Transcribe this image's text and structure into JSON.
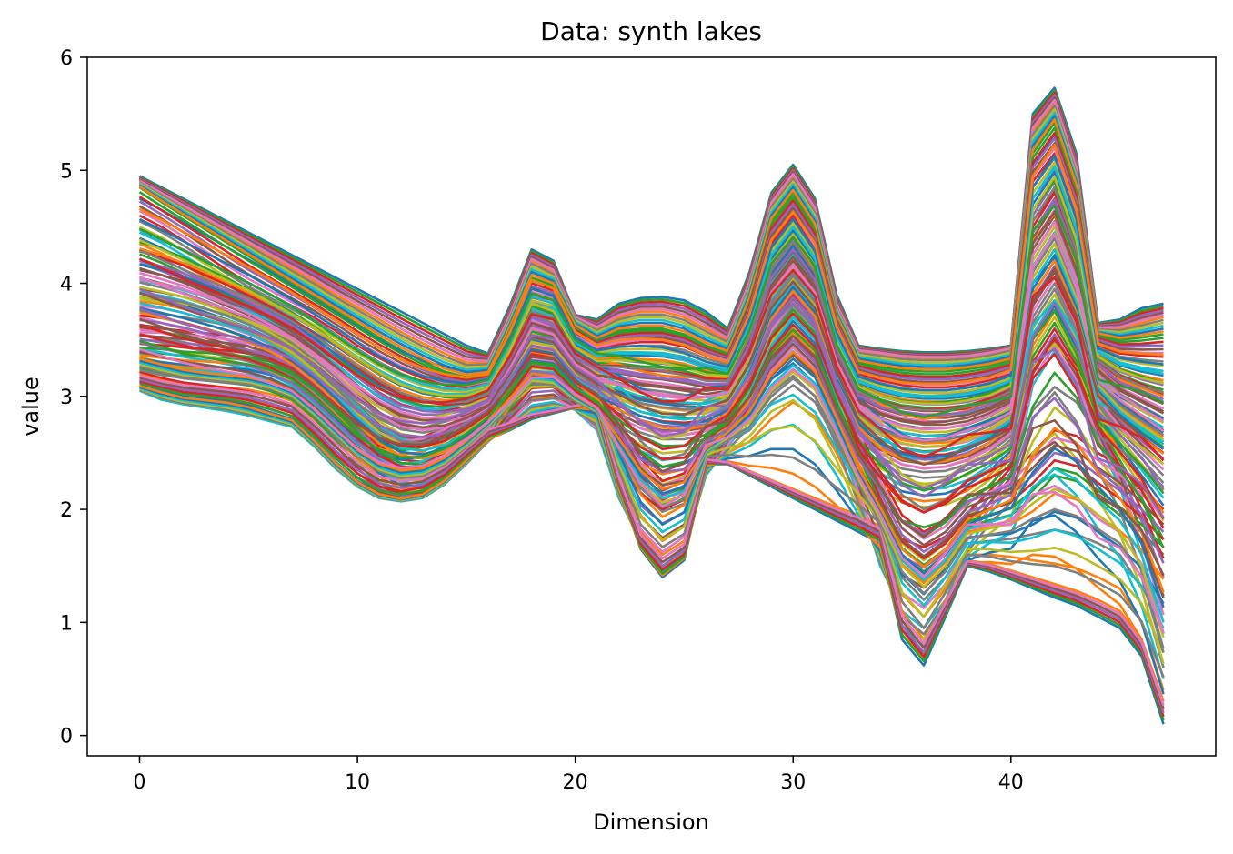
{
  "chart_data": {
    "type": "line",
    "title": "Data: synth lakes",
    "xlabel": "Dimension",
    "ylabel": "value",
    "xlim": [
      -2.4,
      49.4
    ],
    "ylim": [
      -0.18,
      6.0
    ],
    "xticks": [
      0,
      10,
      20,
      30,
      40
    ],
    "yticks": [
      0,
      1,
      2,
      3,
      4,
      5,
      6
    ],
    "grid": false,
    "legend": "none",
    "num_points": 48,
    "x": [
      0,
      1,
      2,
      3,
      4,
      5,
      6,
      7,
      8,
      9,
      10,
      11,
      12,
      13,
      14,
      15,
      16,
      17,
      18,
      19,
      20,
      21,
      22,
      23,
      24,
      25,
      26,
      27,
      28,
      29,
      30,
      31,
      32,
      33,
      34,
      35,
      36,
      37,
      38,
      39,
      40,
      41,
      42,
      43,
      44,
      45,
      46,
      47
    ],
    "color_cycle": [
      "#1f77b4",
      "#ff7f0e",
      "#2ca02c",
      "#d62728",
      "#9467bd",
      "#8c564b",
      "#e377c2",
      "#7f7f7f",
      "#bcbd22",
      "#17becf"
    ],
    "series": [
      {
        "values": [
          4.95,
          4.85,
          4.75,
          4.65,
          4.55,
          4.45,
          4.35,
          4.25,
          4.15,
          4.05,
          3.95,
          3.85,
          3.75,
          3.65,
          3.55,
          3.45,
          3.38,
          3.8,
          4.3,
          4.2,
          3.72,
          3.68,
          3.82,
          3.87,
          3.88,
          3.85,
          3.75,
          3.6,
          4.1,
          4.8,
          5.05,
          4.75,
          3.9,
          3.45,
          3.42,
          3.4,
          3.39,
          3.39,
          3.4,
          3.42,
          3.45,
          5.5,
          5.73,
          5.15,
          3.65,
          3.68,
          3.78,
          3.82
        ]
      },
      {
        "values": [
          4.9,
          4.79,
          4.68,
          4.57,
          4.46,
          4.35,
          4.24,
          4.13,
          4.02,
          3.9,
          3.79,
          3.68,
          3.57,
          3.47,
          3.38,
          3.3,
          3.3,
          3.7,
          4.2,
          4.1,
          3.7,
          3.6,
          3.7,
          3.75,
          3.75,
          3.7,
          3.6,
          3.5,
          4.0,
          4.7,
          4.95,
          4.65,
          3.8,
          3.4,
          3.38,
          3.35,
          3.34,
          3.34,
          3.35,
          3.38,
          3.42,
          5.35,
          5.6,
          5.0,
          3.6,
          3.6,
          3.65,
          3.7
        ]
      },
      {
        "values": [
          4.85,
          4.72,
          4.6,
          4.48,
          4.36,
          4.24,
          4.12,
          4.0,
          3.88,
          3.76,
          3.64,
          3.52,
          3.41,
          3.31,
          3.22,
          3.17,
          3.2,
          3.6,
          4.05,
          3.98,
          3.62,
          3.5,
          3.58,
          3.6,
          3.6,
          3.55,
          3.45,
          3.38,
          3.85,
          4.55,
          4.8,
          4.5,
          3.7,
          3.3,
          3.26,
          3.23,
          3.22,
          3.22,
          3.24,
          3.27,
          3.32,
          5.15,
          5.42,
          4.85,
          3.55,
          3.5,
          3.52,
          3.55
        ]
      },
      {
        "values": [
          4.6,
          4.5,
          4.38,
          4.25,
          4.12,
          4.0,
          3.9,
          3.8,
          3.7,
          3.58,
          3.45,
          3.34,
          3.24,
          3.16,
          3.1,
          3.08,
          3.12,
          3.5,
          3.9,
          3.85,
          3.52,
          3.42,
          3.46,
          3.48,
          3.48,
          3.44,
          3.36,
          3.3,
          3.7,
          4.35,
          4.6,
          4.3,
          3.6,
          3.2,
          3.14,
          3.1,
          3.08,
          3.08,
          3.1,
          3.14,
          3.2,
          4.9,
          5.15,
          4.6,
          3.45,
          3.38,
          3.36,
          3.35
        ]
      },
      {
        "values": [
          4.3,
          4.22,
          4.12,
          4.02,
          3.92,
          3.82,
          3.72,
          3.62,
          3.5,
          3.38,
          3.25,
          3.12,
          3.02,
          2.96,
          2.94,
          2.96,
          3.02,
          3.38,
          3.75,
          3.7,
          3.42,
          3.32,
          3.32,
          3.3,
          3.29,
          3.26,
          3.2,
          3.18,
          3.55,
          4.15,
          4.4,
          4.12,
          3.48,
          3.08,
          3.0,
          2.95,
          2.93,
          2.93,
          2.95,
          3.0,
          3.08,
          4.6,
          4.9,
          4.35,
          3.35,
          3.22,
          3.15,
          3.1
        ]
      },
      {
        "values": [
          4.05,
          4.0,
          3.95,
          3.88,
          3.8,
          3.72,
          3.62,
          3.5,
          3.36,
          3.2,
          3.02,
          2.86,
          2.75,
          2.72,
          2.74,
          2.8,
          2.9,
          3.25,
          3.6,
          3.55,
          3.3,
          3.18,
          3.15,
          3.1,
          3.08,
          3.05,
          3.02,
          3.05,
          3.4,
          3.95,
          4.2,
          3.95,
          3.35,
          2.95,
          2.84,
          2.78,
          2.75,
          2.75,
          2.78,
          2.85,
          2.95,
          4.3,
          4.6,
          4.1,
          3.22,
          3.05,
          2.95,
          2.85
        ]
      },
      {
        "values": [
          3.8,
          3.78,
          3.74,
          3.68,
          3.62,
          3.55,
          3.46,
          3.34,
          3.18,
          3.0,
          2.8,
          2.62,
          2.5,
          2.48,
          2.54,
          2.64,
          2.78,
          3.12,
          3.45,
          3.42,
          3.18,
          3.05,
          2.98,
          2.9,
          2.86,
          2.84,
          2.85,
          2.92,
          3.25,
          3.75,
          4.0,
          3.78,
          3.2,
          2.8,
          2.66,
          2.58,
          2.55,
          2.56,
          2.6,
          2.68,
          2.8,
          4.0,
          4.3,
          3.85,
          3.1,
          2.88,
          2.72,
          2.6
        ]
      },
      {
        "values": [
          3.55,
          3.52,
          3.48,
          3.44,
          3.39,
          3.34,
          3.28,
          3.18,
          3.02,
          2.84,
          2.62,
          2.44,
          2.32,
          2.3,
          2.38,
          2.52,
          2.68,
          3.0,
          3.3,
          3.28,
          3.05,
          2.9,
          2.78,
          2.68,
          2.62,
          2.62,
          2.66,
          2.78,
          3.1,
          3.55,
          3.8,
          3.6,
          3.05,
          2.62,
          2.46,
          2.36,
          2.33,
          2.34,
          2.4,
          2.5,
          2.65,
          3.7,
          4.0,
          3.6,
          2.95,
          2.7,
          2.5,
          2.3
        ]
      },
      {
        "values": [
          3.3,
          3.26,
          3.22,
          3.2,
          3.18,
          3.15,
          3.1,
          3.02,
          2.86,
          2.66,
          2.44,
          2.26,
          2.16,
          2.16,
          2.26,
          2.42,
          2.6,
          2.9,
          3.15,
          3.15,
          2.95,
          2.78,
          2.55,
          2.35,
          2.25,
          2.3,
          2.45,
          2.65,
          2.95,
          3.35,
          3.6,
          3.4,
          2.88,
          2.4,
          2.18,
          2.06,
          2.02,
          2.04,
          2.12,
          2.26,
          2.45,
          3.4,
          3.7,
          3.35,
          2.78,
          2.48,
          2.2,
          1.9
        ]
      },
      {
        "values": [
          3.05,
          2.97,
          2.93,
          2.9,
          2.87,
          2.83,
          2.78,
          2.73,
          2.56,
          2.36,
          2.2,
          2.1,
          2.07,
          2.1,
          2.22,
          2.4,
          2.6,
          2.75,
          2.92,
          2.95,
          2.88,
          2.7,
          2.1,
          1.72,
          1.5,
          1.65,
          2.3,
          2.55,
          2.82,
          3.2,
          3.4,
          3.2,
          2.7,
          2.1,
          1.5,
          1.1,
          0.95,
          1.2,
          1.65,
          1.95,
          2.2,
          3.1,
          3.4,
          3.1,
          2.6,
          2.2,
          1.6,
          0.9
        ]
      },
      {
        "values": [
          3.1,
          3.05,
          3.0,
          2.98,
          2.96,
          2.92,
          2.86,
          2.8,
          2.62,
          2.42,
          2.25,
          2.14,
          2.1,
          2.14,
          2.26,
          2.44,
          2.62,
          2.7,
          2.8,
          2.85,
          2.9,
          2.92,
          2.2,
          1.65,
          1.4,
          1.55,
          2.4,
          2.4,
          2.3,
          2.2,
          2.1,
          2.0,
          1.9,
          1.8,
          1.7,
          0.85,
          0.62,
          1.05,
          1.5,
          1.45,
          1.38,
          1.3,
          1.22,
          1.15,
          1.05,
          0.95,
          0.7,
          0.1
        ]
      },
      {
        "values": [
          3.2,
          3.15,
          3.12,
          3.1,
          3.08,
          3.06,
          3.02,
          2.96,
          2.8,
          2.62,
          2.45,
          2.32,
          2.28,
          2.3,
          2.4,
          2.56,
          2.72,
          2.78,
          2.85,
          2.88,
          2.92,
          2.95,
          2.3,
          1.8,
          1.6,
          1.72,
          2.45,
          2.42,
          2.34,
          2.26,
          2.18,
          2.1,
          2.02,
          1.95,
          1.85,
          1.1,
          0.85,
          1.2,
          1.55,
          1.52,
          1.46,
          1.4,
          1.34,
          1.28,
          1.2,
          1.1,
          0.85,
          0.3
        ]
      },
      {
        "values": [
          3.4,
          3.38,
          3.36,
          3.35,
          3.34,
          3.32,
          3.28,
          3.2,
          3.05,
          2.88,
          2.7,
          2.58,
          2.52,
          2.55,
          2.64,
          2.78,
          2.9,
          3.2,
          3.55,
          3.5,
          3.2,
          3.05,
          2.6,
          2.2,
          2.0,
          2.1,
          2.55,
          2.8,
          3.1,
          3.6,
          3.85,
          3.62,
          3.05,
          2.5,
          2.0,
          1.6,
          1.45,
          1.6,
          1.85,
          1.9,
          1.95,
          2.1,
          2.3,
          2.25,
          2.1,
          1.95,
          1.8,
          1.6
        ]
      },
      {
        "values": [
          3.6,
          3.6,
          3.58,
          3.56,
          3.54,
          3.5,
          3.44,
          3.35,
          3.2,
          3.02,
          2.84,
          2.7,
          2.62,
          2.64,
          2.72,
          2.84,
          2.95,
          3.3,
          3.7,
          3.62,
          3.3,
          3.15,
          2.8,
          2.45,
          2.25,
          2.32,
          2.65,
          2.9,
          3.2,
          3.75,
          4.0,
          3.75,
          3.15,
          2.7,
          2.3,
          1.95,
          1.8,
          1.9,
          2.1,
          2.2,
          2.3,
          2.5,
          2.7,
          2.65,
          2.5,
          2.38,
          2.2,
          2.0
        ]
      },
      {
        "values": [
          4.45,
          4.38,
          4.3,
          4.2,
          4.1,
          4.0,
          3.9,
          3.8,
          3.68,
          3.55,
          3.42,
          3.3,
          3.2,
          3.12,
          3.06,
          3.04,
          3.08,
          3.45,
          3.85,
          3.78,
          3.46,
          3.36,
          3.38,
          3.38,
          3.37,
          3.34,
          3.27,
          3.22,
          3.6,
          4.25,
          4.5,
          4.2,
          3.55,
          3.14,
          3.06,
          3.02,
          3.0,
          3.01,
          3.03,
          3.08,
          3.15,
          4.75,
          5.0,
          4.45,
          3.4,
          3.3,
          3.25,
          3.2
        ]
      },
      {
        "values": [
          3.95,
          3.92,
          3.88,
          3.82,
          3.76,
          3.68,
          3.58,
          3.46,
          3.3,
          3.12,
          2.92,
          2.75,
          2.64,
          2.62,
          2.66,
          2.74,
          2.86,
          3.2,
          3.55,
          3.5,
          3.24,
          3.1,
          3.05,
          2.98,
          2.95,
          2.93,
          2.94,
          3.0,
          3.32,
          3.85,
          4.1,
          3.86,
          3.26,
          2.88,
          2.75,
          2.68,
          2.65,
          2.66,
          2.7,
          2.78,
          2.88,
          4.15,
          4.45,
          3.95,
          3.15,
          2.95,
          2.82,
          2.7
        ]
      },
      {
        "values": [
          3.7,
          3.65,
          3.6,
          3.55,
          3.5,
          3.44,
          3.36,
          3.25,
          3.1,
          2.92,
          2.72,
          2.55,
          2.44,
          2.42,
          2.48,
          2.6,
          2.76,
          3.05,
          3.35,
          3.32,
          3.1,
          2.95,
          2.85,
          2.75,
          2.68,
          2.66,
          2.7,
          2.82,
          3.15,
          3.65,
          3.9,
          3.68,
          3.1,
          2.7,
          2.5,
          2.4,
          2.36,
          2.38,
          2.44,
          2.55,
          2.7,
          3.85,
          4.15,
          3.7,
          3.0,
          2.78,
          2.6,
          2.45
        ]
      },
      {
        "values": [
          3.25,
          3.2,
          3.16,
          3.14,
          3.12,
          3.1,
          3.05,
          2.98,
          2.82,
          2.64,
          2.46,
          2.32,
          2.26,
          2.28,
          2.38,
          2.54,
          2.72,
          2.9,
          3.1,
          3.08,
          2.95,
          2.85,
          2.5,
          2.15,
          1.98,
          2.05,
          2.5,
          2.6,
          2.7,
          2.95,
          3.1,
          2.95,
          2.6,
          2.2,
          1.85,
          1.4,
          1.2,
          1.4,
          1.7,
          1.72,
          1.74,
          1.78,
          1.82,
          1.78,
          1.7,
          1.6,
          1.3,
          0.6
        ]
      },
      {
        "values": [
          3.35,
          3.3,
          3.25,
          3.22,
          3.2,
          3.18,
          3.14,
          3.06,
          2.9,
          2.72,
          2.54,
          2.42,
          2.36,
          2.38,
          2.47,
          2.62,
          2.78,
          3.0,
          3.22,
          3.2,
          3.02,
          2.9,
          2.65,
          2.38,
          2.22,
          2.28,
          2.55,
          2.7,
          2.9,
          3.25,
          3.45,
          3.28,
          2.85,
          2.4,
          2.05,
          1.7,
          1.55,
          1.7,
          1.95,
          2.05,
          2.15,
          2.6,
          2.9,
          2.75,
          2.45,
          2.2,
          1.9,
          1.4
        ]
      },
      {
        "values": [
          4.2,
          4.12,
          4.04,
          3.96,
          3.88,
          3.8,
          3.7,
          3.6,
          3.48,
          3.34,
          3.2,
          3.07,
          2.96,
          2.9,
          2.88,
          2.9,
          2.98,
          3.3,
          3.68,
          3.62,
          3.34,
          3.22,
          3.2,
          3.18,
          3.16,
          3.12,
          3.08,
          3.1,
          3.48,
          4.05,
          4.3,
          4.03,
          3.4,
          3.0,
          2.9,
          2.84,
          2.82,
          2.82,
          2.85,
          2.9,
          3.0,
          4.45,
          4.75,
          4.2,
          3.28,
          3.12,
          3.02,
          2.95
        ]
      },
      {
        "values": [
          4.75,
          4.65,
          4.54,
          4.43,
          4.32,
          4.21,
          4.1,
          3.98,
          3.86,
          3.74,
          3.62,
          3.5,
          3.4,
          3.32,
          3.26,
          3.22,
          3.24,
          3.62,
          4.1,
          4.02,
          3.62,
          3.5,
          3.56,
          3.58,
          3.57,
          3.52,
          3.42,
          3.34,
          3.78,
          4.45,
          4.7,
          4.42,
          3.65,
          3.26,
          3.22,
          3.18,
          3.17,
          3.17,
          3.19,
          3.22,
          3.28,
          5.05,
          5.32,
          4.75,
          3.5,
          3.45,
          3.45,
          3.45
        ]
      },
      {
        "values": [
          3.15,
          3.1,
          3.05,
          3.02,
          3.0,
          2.98,
          2.92,
          2.86,
          2.7,
          2.5,
          2.32,
          2.2,
          2.16,
          2.2,
          2.32,
          2.5,
          2.68,
          2.82,
          2.98,
          3.0,
          2.9,
          2.78,
          2.35,
          1.95,
          1.72,
          1.85,
          2.4,
          2.5,
          2.6,
          2.8,
          2.95,
          2.82,
          2.5,
          2.1,
          1.7,
          1.25,
          1.05,
          1.3,
          1.6,
          1.6,
          1.58,
          1.55,
          1.52,
          1.48,
          1.4,
          1.3,
          1.0,
          0.4
        ]
      }
    ]
  }
}
